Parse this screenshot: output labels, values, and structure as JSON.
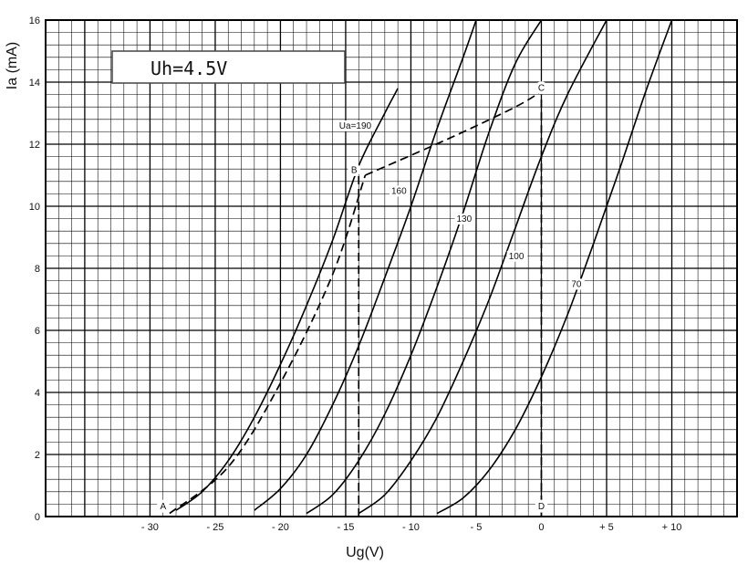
{
  "chart_data": {
    "type": "line",
    "title": "",
    "xlabel": "Ug(V)",
    "ylabel": "Ia (mA)",
    "xlim": [
      -38,
      15
    ],
    "ylim": [
      0,
      16
    ],
    "x_ticks": [
      -30,
      -25,
      -20,
      -15,
      -10,
      -5,
      0,
      5,
      10
    ],
    "x_tick_labels": [
      "- 30",
      "- 25",
      "- 20",
      "- 15",
      "- 10",
      "- 5",
      "0",
      "+ 5",
      "+ 10"
    ],
    "y_ticks": [
      0,
      2,
      4,
      6,
      8,
      10,
      12,
      14,
      16
    ],
    "y_tick_labels": [
      "0",
      "2",
      "4",
      "6",
      "8",
      "10",
      "12",
      "14",
      "16"
    ],
    "grid": true,
    "annotation_box": "Uh=4.5V",
    "series": [
      {
        "name": "Ua=190",
        "label": "Ua=190",
        "label_at": [
          -15.5,
          12.5
        ],
        "x": [
          -28,
          -26,
          -24,
          -22,
          -20,
          -18,
          -16,
          -14,
          -12,
          -11
        ],
        "y": [
          0.2,
          0.8,
          1.8,
          3.2,
          4.9,
          6.8,
          8.9,
          11.3,
          13.0,
          13.8
        ]
      },
      {
        "name": "160",
        "label": "160",
        "label_at": [
          -11.5,
          10.4
        ],
        "x": [
          -22,
          -20,
          -18,
          -16,
          -14,
          -12,
          -10,
          -8,
          -6,
          -5
        ],
        "y": [
          0.2,
          0.9,
          2.0,
          3.6,
          5.5,
          7.7,
          10.0,
          12.5,
          14.8,
          16.0
        ]
      },
      {
        "name": "130",
        "label": "130",
        "label_at": [
          -6.5,
          9.5
        ],
        "x": [
          -18,
          -16,
          -14,
          -12,
          -10,
          -8,
          -6,
          -4,
          -2,
          0
        ],
        "y": [
          0.1,
          0.7,
          1.8,
          3.3,
          5.2,
          7.4,
          9.8,
          12.4,
          14.6,
          16.0
        ]
      },
      {
        "name": "100",
        "label": "100",
        "label_at": [
          -2.5,
          8.3
        ],
        "x": [
          -14,
          -12,
          -10,
          -8,
          -6,
          -4,
          -2,
          0,
          2,
          5
        ],
        "y": [
          0.1,
          0.7,
          1.8,
          3.2,
          5.0,
          7.0,
          9.3,
          11.6,
          13.6,
          16.0
        ]
      },
      {
        "name": "70",
        "label": "70",
        "label_at": [
          2.3,
          7.4
        ],
        "x": [
          -8,
          -6,
          -4,
          -2,
          0,
          2,
          4,
          6,
          8,
          10
        ],
        "y": [
          0.1,
          0.6,
          1.5,
          2.8,
          4.5,
          6.5,
          8.8,
          11.2,
          13.7,
          16.0
        ]
      }
    ],
    "dashed_paths": [
      {
        "x": [
          -28.5,
          -24,
          -20,
          -16,
          -13.5
        ],
        "y": [
          0.1,
          1.6,
          4.3,
          7.8,
          11.0
        ]
      },
      {
        "x": [
          -13.5,
          -7,
          -2,
          0
        ],
        "y": [
          11.0,
          12.2,
          13.2,
          13.7
        ]
      },
      {
        "x": [
          -14,
          -14
        ],
        "y": [
          0,
          11.0
        ]
      },
      {
        "x": [
          0,
          0
        ],
        "y": [
          0,
          13.7
        ]
      }
    ],
    "points": [
      {
        "label": "A",
        "x": -28.5,
        "y": 0.1
      },
      {
        "label": "B",
        "x": -14.0,
        "y": 11.0
      },
      {
        "label": "C",
        "x": 0,
        "y": 13.7
      },
      {
        "label": "D",
        "x": 0,
        "y": 0.1
      }
    ]
  }
}
